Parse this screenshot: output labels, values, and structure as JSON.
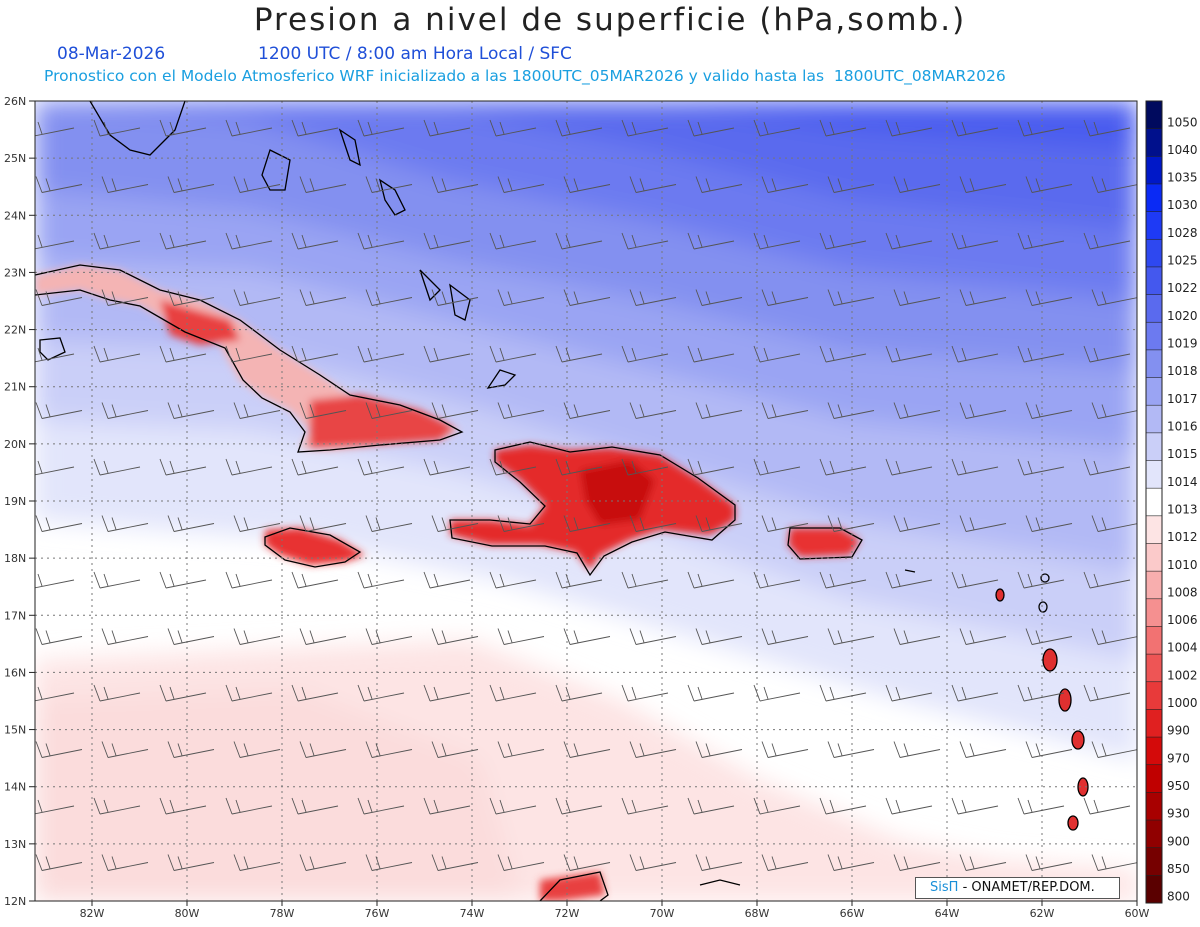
{
  "header": {
    "title": "Presion a nivel de superficie (hPa,somb.)",
    "date": "08-Mar-2026",
    "time_info": "1200 UTC / 8:00 am Hora Local / SFC",
    "forecast_info": "Pronostico con el Modelo Atmosferico WRF inicializado a las 1800UTC_05MAR2026 y valido hasta las  1800UTC_08MAR2026"
  },
  "map": {
    "lat_labels": [
      "26N",
      "25N",
      "24N",
      "23N",
      "22N",
      "21N",
      "20N",
      "19N",
      "18N",
      "17N",
      "16N",
      "15N",
      "14N",
      "13N",
      "12N"
    ],
    "lon_labels": [
      "82W",
      "80W",
      "78W",
      "76W",
      "74W",
      "72W",
      "70W",
      "68W",
      "66W",
      "64W",
      "62W",
      "60W"
    ],
    "lat_range": [
      12,
      26
    ],
    "lon_range": [
      -83.2,
      -60
    ],
    "projection": "lat-lon",
    "field": "surface pressure shaded (hPa) with wind barbs"
  },
  "colorbar": {
    "levels": [
      "1050",
      "1040",
      "1035",
      "1030",
      "1028",
      "1025",
      "1022",
      "1020",
      "1019",
      "1018",
      "1017",
      "1016",
      "1015",
      "1014",
      "1013",
      "1012",
      "1010",
      "1008",
      "1006",
      "1004",
      "1002",
      "1000",
      "990",
      "970",
      "950",
      "930",
      "900",
      "850",
      "800"
    ],
    "colors": [
      "#000a5e",
      "#00108c",
      "#0018c8",
      "#0a2af5",
      "#1e3af5",
      "#2e48f0",
      "#4458ee",
      "#5a6aee",
      "#6c7af0",
      "#8390f0",
      "#9aa4f3",
      "#b2b9f5",
      "#cacff8",
      "#e2e5fb",
      "#ffffff",
      "#fde4e4",
      "#fbcaca",
      "#f8aeae",
      "#f59090",
      "#f27272",
      "#ee5555",
      "#e83a3a",
      "#e02020",
      "#d40a0a",
      "#c00000",
      "#a80000",
      "#900000",
      "#760000",
      "#5a0000"
    ]
  },
  "credit": {
    "brand": "SisΠ",
    "text": "- ONAMET/REP.DOM."
  }
}
